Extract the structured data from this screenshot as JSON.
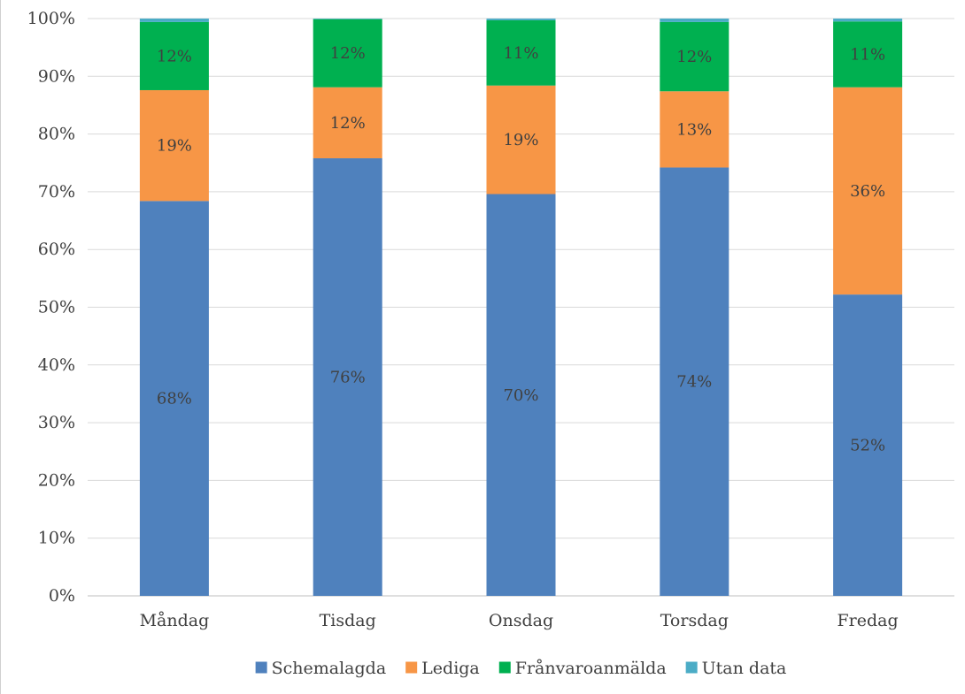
{
  "chart_data": {
    "type": "bar",
    "stacked": true,
    "categories": [
      "Måndag",
      "Tisdag",
      "Onsdag",
      "Torsdag",
      "Fredag"
    ],
    "series": [
      {
        "name": "Schemalagda",
        "color": "#4f81bd",
        "values": [
          68.4,
          75.8,
          69.6,
          74.2,
          52.2
        ],
        "labels": [
          "68%",
          "76%",
          "70%",
          "74%",
          "52%"
        ]
      },
      {
        "name": "Lediga",
        "color": "#f79646",
        "values": [
          19.2,
          12.3,
          18.8,
          13.2,
          35.9
        ],
        "labels": [
          "19%",
          "12%",
          "19%",
          "13%",
          "36%"
        ]
      },
      {
        "name": "Frånvaroanmälda",
        "color": "#00b050",
        "values": [
          11.8,
          11.8,
          11.3,
          12.0,
          11.4
        ],
        "labels": [
          "12%",
          "12%",
          "11%",
          "12%",
          "11%"
        ]
      },
      {
        "name": "Utan data",
        "color": "#4bacc6",
        "values": [
          0.6,
          0.1,
          0.3,
          0.6,
          0.5
        ],
        "labels": [
          "",
          "",
          "",
          "",
          ""
        ]
      }
    ],
    "y_ticks": [
      "0%",
      "10%",
      "20%",
      "30%",
      "40%",
      "50%",
      "60%",
      "70%",
      "80%",
      "90%",
      "100%"
    ],
    "ylim": [
      0,
      100
    ],
    "grid": true,
    "legend_position": "bottom"
  }
}
